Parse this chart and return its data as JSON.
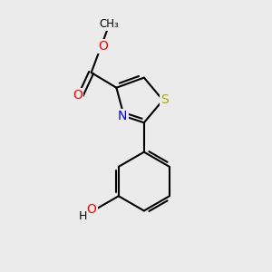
{
  "background_color": "#ebebeb",
  "bond_color": "#000000",
  "atom_colors": {
    "O": "#ff0000",
    "N": "#0000ff",
    "S": "#aaaa00",
    "C": "#000000",
    "H": "#000000"
  },
  "figsize": [
    3.0,
    3.0
  ],
  "dpi": 100,
  "xlim": [
    0,
    10
  ],
  "ylim": [
    0,
    10
  ]
}
